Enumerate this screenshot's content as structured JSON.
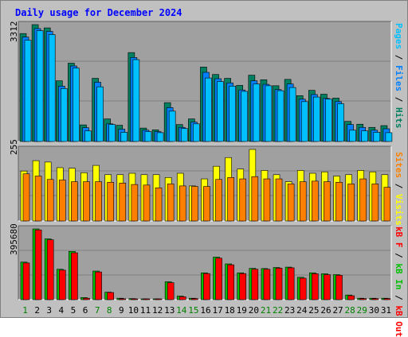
{
  "title": "Daily usage for December 2024",
  "colors": {
    "title": "#0000ff",
    "pages": "#00c0ff",
    "files": "#0080ff",
    "hits": "#008060",
    "sites": "#ff8000",
    "visits": "#ffff00",
    "kb_in": "#00c000",
    "kb_out": "#ff0000",
    "weekend_label": "#008000",
    "panel_bg": "#a0a0a0",
    "frame_bg": "#c0c0c0"
  },
  "legends": {
    "top": [
      {
        "text": "Pages",
        "color": "#00c0ff"
      },
      {
        "text": "Files",
        "color": "#0080ff"
      },
      {
        "text": "Hits",
        "color": "#008060"
      }
    ],
    "middle": [
      {
        "text": "Sites",
        "color": "#ff8000"
      },
      {
        "text": "Visits",
        "color": "#ffff00"
      }
    ],
    "bottom": [
      {
        "text": "kB F",
        "color": "#ff0000"
      },
      {
        "text": "kB In",
        "color": "#00c000"
      },
      {
        "text": "kB Out",
        "color": "#ff0000"
      }
    ]
  },
  "chart_data": [
    {
      "type": "bar",
      "name": "hits-files-pages",
      "ymax_label": "3312",
      "ylim": [
        0,
        3312
      ],
      "categories": [
        "1",
        "2",
        "3",
        "4",
        "5",
        "6",
        "7",
        "8",
        "9",
        "10",
        "11",
        "12",
        "13",
        "14",
        "15",
        "16",
        "17",
        "18",
        "19",
        "20",
        "21",
        "22",
        "23",
        "24",
        "25",
        "26",
        "27",
        "28",
        "29",
        "30",
        "31"
      ],
      "weekend_days": [
        "1",
        "7",
        "8",
        "14",
        "15",
        "21",
        "22",
        "28",
        "29"
      ],
      "series": [
        {
          "name": "Hits",
          "values": [
            3060,
            3312,
            3220,
            1720,
            2220,
            470,
            1790,
            640,
            460,
            2520,
            380,
            330,
            1100,
            480,
            640,
            2110,
            1900,
            1790,
            1590,
            1880,
            1750,
            1580,
            1760,
            1300,
            1450,
            1340,
            1230,
            570,
            490,
            400,
            450
          ]
        },
        {
          "name": "Files",
          "values": [
            2960,
            3200,
            3120,
            1570,
            2140,
            390,
            1680,
            500,
            350,
            2380,
            320,
            280,
            960,
            400,
            550,
            1960,
            1780,
            1660,
            1460,
            1720,
            1620,
            1470,
            1630,
            1200,
            1330,
            1220,
            1130,
            480,
            400,
            320,
            360
          ]
        },
        {
          "name": "Pages",
          "values": [
            2870,
            3140,
            3030,
            1500,
            2080,
            300,
            1550,
            480,
            260,
            2320,
            280,
            250,
            860,
            370,
            500,
            1800,
            1700,
            1570,
            1420,
            1630,
            1580,
            1440,
            1530,
            1130,
            1260,
            1200,
            1070,
            320,
            300,
            260,
            250
          ]
        }
      ]
    },
    {
      "type": "bar",
      "name": "visits-sites",
      "ymax_label": "255",
      "ylim": [
        0,
        255
      ],
      "categories": [
        "1",
        "2",
        "3",
        "4",
        "5",
        "6",
        "7",
        "8",
        "9",
        "10",
        "11",
        "12",
        "13",
        "14",
        "15",
        "16",
        "17",
        "18",
        "19",
        "20",
        "21",
        "22",
        "23",
        "24",
        "25",
        "26",
        "27",
        "28",
        "29",
        "30",
        "31"
      ],
      "series": [
        {
          "name": "Visits",
          "values": [
            178,
            215,
            210,
            190,
            188,
            172,
            198,
            165,
            165,
            170,
            165,
            165,
            155,
            170,
            125,
            150,
            195,
            226,
            185,
            255,
            180,
            165,
            140,
            180,
            170,
            175,
            160,
            165,
            180,
            175,
            165
          ]
        },
        {
          "name": "Sites",
          "values": [
            168,
            160,
            148,
            146,
            140,
            140,
            140,
            138,
            135,
            130,
            128,
            118,
            132,
            125,
            123,
            123,
            148,
            155,
            150,
            158,
            150,
            150,
            132,
            140,
            142,
            140,
            138,
            132,
            150,
            132,
            120
          ]
        }
      ]
    },
    {
      "type": "bar",
      "name": "kb-in-out",
      "ymax_label": "395680",
      "ylim": [
        0,
        395680
      ],
      "categories": [
        "1",
        "2",
        "3",
        "4",
        "5",
        "6",
        "7",
        "8",
        "9",
        "10",
        "11",
        "12",
        "13",
        "14",
        "15",
        "16",
        "17",
        "18",
        "19",
        "20",
        "21",
        "22",
        "23",
        "24",
        "25",
        "26",
        "27",
        "28",
        "29",
        "30",
        "31"
      ],
      "series": [
        {
          "name": "kB In",
          "values": [
            210000,
            395680,
            340000,
            170000,
            270000,
            12000,
            160000,
            42000,
            8000,
            6000,
            4000,
            4000,
            100000,
            20000,
            8000,
            150000,
            238000,
            200000,
            150000,
            175000,
            174000,
            180000,
            182000,
            125000,
            150000,
            145000,
            140000,
            26000,
            8000,
            8000,
            8000
          ]
        },
        {
          "name": "kB Out",
          "values": [
            205000,
            390000,
            335000,
            165000,
            262000,
            8000,
            155000,
            40000,
            5000,
            4000,
            3000,
            3000,
            95000,
            16000,
            6000,
            146000,
            232000,
            195000,
            146000,
            170000,
            170000,
            176000,
            178000,
            120000,
            145000,
            140000,
            136000,
            22000,
            6000,
            6000,
            6000
          ]
        }
      ]
    }
  ]
}
